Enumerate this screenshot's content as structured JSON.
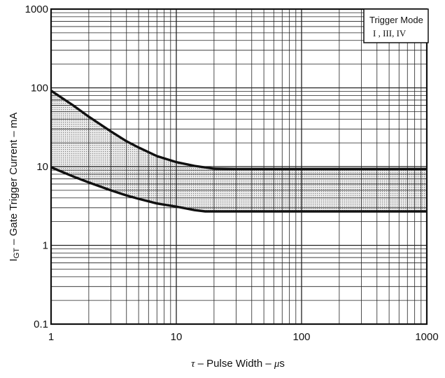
{
  "chart_data": {
    "type": "line",
    "xlabel": "τ — Pulse Width — μs",
    "ylabel": "I_GT — Gate Trigger Current — mA",
    "ylabel_parts": {
      "main": "I",
      "sub": "GT",
      "rest": " – Gate Trigger Current – mA"
    },
    "xlabel_parts": {
      "tau": "τ",
      "rest": " – Pulse Width – ",
      "mu": "μ",
      "unit": "s"
    },
    "xscale": "log",
    "yscale": "log",
    "xlim": [
      1,
      1000
    ],
    "ylim": [
      0.1,
      1000
    ],
    "x_tick_labels": [
      "1",
      "10",
      "100",
      "1000"
    ],
    "y_tick_labels": [
      "0.1",
      "1",
      "10",
      "100",
      "1000"
    ],
    "grid": true,
    "legend_box": {
      "title": "Trigger Mode",
      "subtitle": "I , III, IV",
      "placement": "top-right"
    },
    "series": [
      {
        "x": [
          1,
          1.5,
          2,
          3,
          4,
          5,
          7,
          10,
          14,
          20,
          30,
          50,
          100,
          1000
        ],
        "y": [
          92,
          60,
          43,
          28,
          21,
          17.5,
          13.6,
          11.4,
          10.2,
          9.4,
          9.3,
          9.3,
          9.3,
          9.3
        ]
      },
      {
        "x": [
          1,
          1.5,
          2,
          3,
          4,
          5,
          7,
          10,
          14,
          17,
          20,
          50,
          100,
          1000
        ],
        "y": [
          9.8,
          7.5,
          6.3,
          5.0,
          4.3,
          3.9,
          3.4,
          3.1,
          2.8,
          2.7,
          2.7,
          2.7,
          2.7,
          2.7
        ]
      }
    ],
    "shaded_region": "between_series",
    "colors": {
      "line": "#111111",
      "grid": "#222222",
      "shade": "#9a9a9a"
    }
  }
}
